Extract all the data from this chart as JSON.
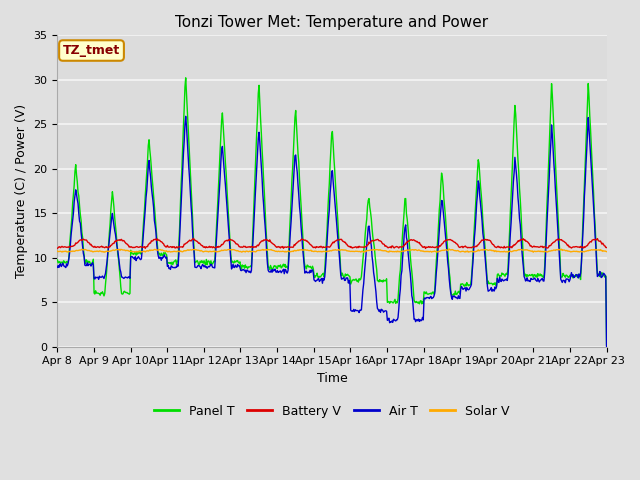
{
  "title": "Tonzi Tower Met: Temperature and Power",
  "xlabel": "Time",
  "ylabel": "Temperature (C) / Power (V)",
  "ylim": [
    0,
    35
  ],
  "yticks": [
    0,
    5,
    10,
    15,
    20,
    25,
    30,
    35
  ],
  "x_tick_labels": [
    "Apr 8",
    "Apr 9",
    "Apr 10",
    "Apr 11",
    "Apr 12",
    "Apr 13",
    "Apr 14",
    "Apr 15",
    "Apr 16",
    "Apr 17",
    "Apr 18",
    "Apr 19",
    "Apr 20",
    "Apr 21",
    "Apr 22",
    "Apr 23"
  ],
  "fig_bg_color": "#e0e0e0",
  "plot_bg_color": "#dcdcdc",
  "grid_color": "#f0f0f0",
  "panel_t_color": "#00dd00",
  "battery_v_color": "#dd0000",
  "air_t_color": "#0000cc",
  "solar_v_color": "#ffaa00",
  "label_box_color": "#ffffcc",
  "label_box_edge": "#cc8800",
  "label_text": "TZ_tmet",
  "legend_labels": [
    "Panel T",
    "Battery V",
    "Air T",
    "Solar V"
  ],
  "title_fontsize": 11,
  "axis_fontsize": 9,
  "tick_fontsize": 8,
  "legend_fontsize": 9
}
